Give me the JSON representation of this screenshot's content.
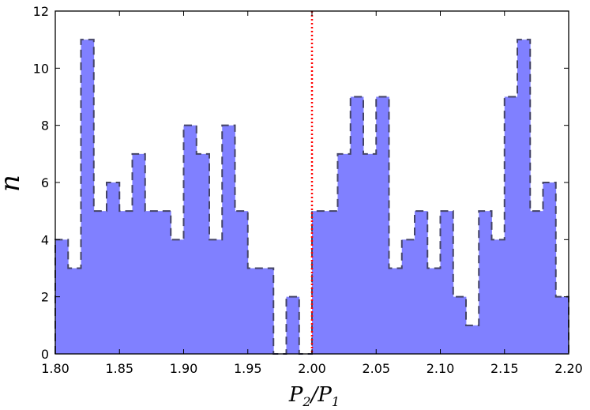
{
  "chart_data": {
    "type": "histogram",
    "xlabel": {
      "main": "P",
      "sub1": "2",
      "slash": "/",
      "main2": "P",
      "sub2": "1"
    },
    "ylabel": "n",
    "xlim": [
      1.8,
      2.2
    ],
    "ylim": [
      0,
      12
    ],
    "x_ticks": [
      "1.80",
      "1.85",
      "1.90",
      "1.95",
      "2.00",
      "2.05",
      "2.10",
      "2.15",
      "2.20"
    ],
    "x_tick_values": [
      1.8,
      1.85,
      1.9,
      1.95,
      2.0,
      2.05,
      2.1,
      2.15,
      2.2
    ],
    "y_ticks": [
      "0",
      "2",
      "4",
      "6",
      "8",
      "10",
      "12"
    ],
    "y_tick_values": [
      0,
      2,
      4,
      6,
      8,
      10,
      12
    ],
    "bin_edges_start": 1.8,
    "bin_width": 0.01,
    "counts": [
      4,
      3,
      11,
      5,
      6,
      5,
      7,
      5,
      5,
      4,
      8,
      7,
      4,
      8,
      5,
      3,
      3,
      0,
      2,
      0,
      5,
      5,
      7,
      9,
      7,
      9,
      3,
      4,
      5,
      3,
      5,
      2,
      1,
      5,
      4,
      9,
      11,
      5,
      6,
      2
    ],
    "reference_line": {
      "x": 2.0,
      "color": "#ff0000",
      "style": "dotted"
    },
    "fill_color": "#8080ff",
    "edge_color": "#444466",
    "grid": false
  }
}
